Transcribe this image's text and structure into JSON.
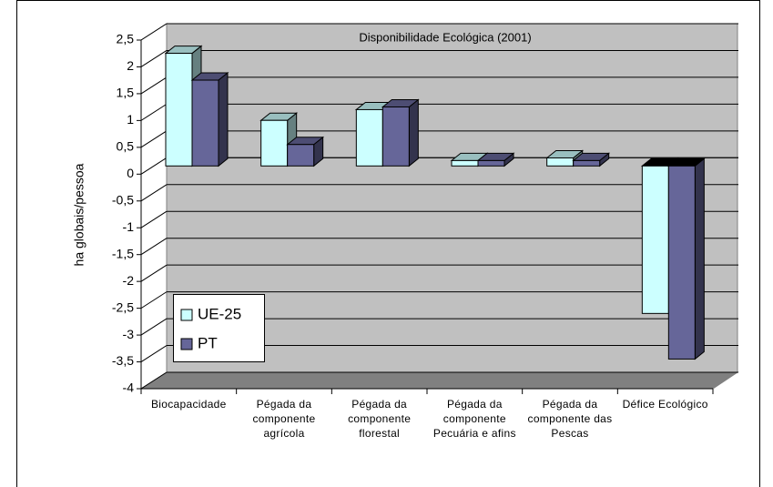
{
  "chart_data": {
    "type": "bar3d",
    "title": "Disponibilidade Ecológica (2001)",
    "ylabel": "ha globais/pessoa",
    "categories": [
      "Biocapacidade",
      "Pégada da componente agrícola",
      "Pégada da componente florestal",
      "Pégada da componente Pecuária e afins",
      "Pégada da componente das Pescas",
      "Défice Ecológico"
    ],
    "series": [
      {
        "name": "UE-25",
        "color": "#ccffff",
        "values": [
          2.1,
          0.85,
          1.05,
          0.1,
          0.15,
          -2.75
        ]
      },
      {
        "name": "PT",
        "color": "#666699",
        "values": [
          1.6,
          0.4,
          1.1,
          0.1,
          0.1,
          -3.6
        ]
      }
    ],
    "ylim": [
      -4,
      2.5
    ],
    "yticks": [
      {
        "value": 2.5,
        "label": "2,5"
      },
      2,
      {
        "value": 1.5,
        "label": "1,5"
      },
      1,
      {
        "value": 0.5,
        "label": "0,5"
      },
      0,
      {
        "value": -0.5,
        "label": "-0,5"
      },
      -1,
      {
        "value": -1.5,
        "label": "-1,5"
      },
      -2,
      {
        "value": -2.5,
        "label": "-2,5"
      },
      -3,
      {
        "value": -3.5,
        "label": "-3,5"
      },
      -4
    ],
    "grid": true,
    "legend": "lower-left"
  }
}
